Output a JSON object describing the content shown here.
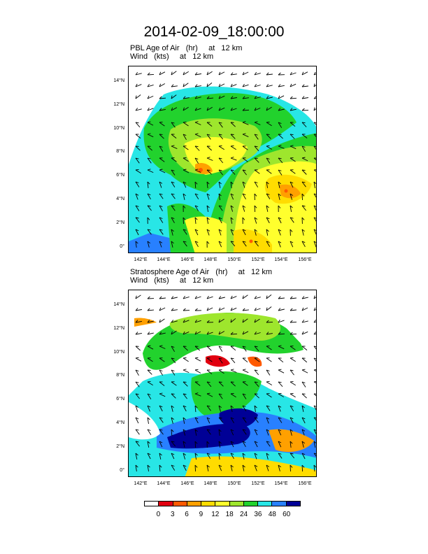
{
  "title": "2014-02-09_18:00:00",
  "panels": [
    {
      "line1": "PBL Age of Air   (hr)     at   12 km",
      "line2": "Wind   (kts)     at   12 km"
    },
    {
      "line1": "Stratosphere Age of Air   (hr)     at   12 km",
      "line2": "Wind   (kts)     at   12 km"
    }
  ],
  "lat_ticks": [
    "14°N",
    "12°N",
    "10°N",
    "8°N",
    "6°N",
    "4°N",
    "2°N",
    "0°"
  ],
  "lon_ticks": [
    "142°E",
    "144°E",
    "146°E",
    "148°E",
    "150°E",
    "152°E",
    "154°E",
    "156°E"
  ],
  "colorbar": {
    "labels": [
      "0",
      "3",
      "6",
      "9",
      "12",
      "18",
      "24",
      "36",
      "48",
      "60"
    ],
    "colors": [
      "#ffffff",
      "#e1000f",
      "#ff5a00",
      "#ffa000",
      "#ffdc00",
      "#ffff2d",
      "#9ee62d",
      "#22d22d",
      "#28e6e6",
      "#2880ff",
      "#000096"
    ]
  },
  "colors": {
    "green": "#22d22d",
    "lightgreen": "#9ee62d",
    "yellow": "#ffff2d",
    "gold": "#ffdc00",
    "orange": "#ffa000",
    "red": "#e1000f",
    "cyan": "#28e6e6",
    "blue": "#2880ff",
    "navy": "#000096"
  }
}
